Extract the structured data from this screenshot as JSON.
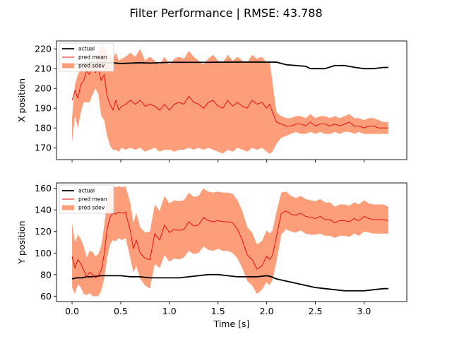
{
  "title": "Filter Performance | RMSE: 43.788",
  "colors": {
    "actual": "#000000",
    "pred_mean": "#ee0000",
    "pred_sdev": "#fc9e7a"
  },
  "chart_data": [
    {
      "type": "line",
      "xlabel": "",
      "ylabel": "X position",
      "xlim": [
        -0.16,
        3.44
      ],
      "ylim": [
        164,
        224
      ],
      "xticks": [
        0.0,
        0.5,
        1.0,
        1.5,
        2.0,
        2.5,
        3.0
      ],
      "xticklabels": [],
      "yticks": [
        170,
        180,
        190,
        200,
        210,
        220
      ],
      "yticklabels": [
        "170",
        "180",
        "190",
        "200",
        "210",
        "220"
      ],
      "legend": {
        "position": "upper-left",
        "entries": [
          "actual",
          "pred mean",
          "pred sdev"
        ]
      },
      "series": [
        {
          "name": "actual",
          "x": [
            0.0,
            0.05,
            0.1,
            0.15,
            0.2,
            0.3,
            0.4,
            0.5,
            0.6,
            0.7,
            0.8,
            1.0,
            1.2,
            1.4,
            1.6,
            1.8,
            2.0,
            2.1,
            2.2,
            2.3,
            2.4,
            2.45,
            2.5,
            2.6,
            2.7,
            2.8,
            2.9,
            3.0,
            3.1,
            3.2,
            3.25
          ],
          "y": [
            212,
            212.3,
            212.6,
            212.8,
            213,
            213,
            213,
            212.6,
            212.8,
            213,
            212.8,
            213.2,
            213.2,
            213.2,
            213.3,
            213.3,
            213.3,
            213.3,
            212,
            211.6,
            211.2,
            210,
            210,
            210,
            211.6,
            211.6,
            210.7,
            210,
            210,
            210.6,
            210.6
          ]
        },
        {
          "name": "pred mean",
          "x": [
            0.0,
            0.03,
            0.06,
            0.09,
            0.12,
            0.15,
            0.18,
            0.21,
            0.24,
            0.27,
            0.3,
            0.33,
            0.36,
            0.39,
            0.42,
            0.45,
            0.48,
            0.51,
            0.55,
            0.6,
            0.65,
            0.7,
            0.75,
            0.8,
            0.85,
            0.9,
            0.95,
            1.0,
            1.05,
            1.1,
            1.15,
            1.2,
            1.25,
            1.3,
            1.35,
            1.4,
            1.45,
            1.5,
            1.55,
            1.6,
            1.65,
            1.7,
            1.75,
            1.8,
            1.85,
            1.9,
            1.95,
            2.0,
            2.03,
            2.06,
            2.1,
            2.15,
            2.2,
            2.25,
            2.3,
            2.35,
            2.4,
            2.45,
            2.5,
            2.55,
            2.6,
            2.65,
            2.7,
            2.75,
            2.8,
            2.85,
            2.9,
            2.95,
            3.0,
            3.05,
            3.1,
            3.15,
            3.2,
            3.25
          ],
          "y": [
            194,
            199,
            195,
            202,
            204,
            209,
            207,
            212,
            208,
            210,
            204,
            207,
            196,
            192,
            189,
            194,
            189,
            191,
            192,
            194,
            192,
            194,
            191,
            192,
            191,
            189,
            192,
            189,
            192,
            193,
            192,
            196,
            193,
            192,
            190,
            193,
            194,
            191,
            190,
            194,
            191,
            193,
            191,
            190,
            194,
            192,
            193,
            190,
            192,
            188,
            183,
            182,
            181,
            181,
            182,
            182,
            181,
            183,
            181,
            182,
            182,
            181,
            182,
            181,
            182,
            183,
            181,
            181,
            180,
            181,
            181,
            180,
            180,
            180
          ]
        },
        {
          "name": "pred sdev",
          "x": [
            0.0,
            0.03,
            0.06,
            0.09,
            0.12,
            0.15,
            0.18,
            0.21,
            0.24,
            0.27,
            0.3,
            0.33,
            0.36,
            0.39,
            0.42,
            0.45,
            0.48,
            0.51,
            0.55,
            0.6,
            0.65,
            0.7,
            0.75,
            0.8,
            0.85,
            0.9,
            0.95,
            1.0,
            1.05,
            1.1,
            1.15,
            1.2,
            1.25,
            1.3,
            1.35,
            1.4,
            1.45,
            1.5,
            1.55,
            1.6,
            1.65,
            1.7,
            1.75,
            1.8,
            1.85,
            1.9,
            1.95,
            2.0,
            2.03,
            2.06,
            2.1,
            2.15,
            2.2,
            2.25,
            2.3,
            2.35,
            2.4,
            2.45,
            2.5,
            2.55,
            2.6,
            2.65,
            2.7,
            2.75,
            2.8,
            2.85,
            2.9,
            2.95,
            3.0,
            3.05,
            3.1,
            3.15,
            3.2,
            3.25
          ],
          "lower": [
            173,
            186,
            180,
            188,
            193,
            193,
            193,
            197,
            200,
            197,
            186,
            184,
            176,
            171,
            169,
            169,
            168,
            170,
            169,
            170,
            169,
            170,
            168,
            169,
            170,
            168,
            169,
            169,
            168,
            169,
            169,
            170,
            169,
            170,
            169,
            170,
            169,
            168,
            167,
            169,
            168,
            170,
            169,
            168,
            170,
            169,
            170,
            168,
            167,
            168,
            172,
            175,
            176,
            177,
            178,
            177,
            177,
            178,
            177,
            178,
            177,
            177,
            178,
            177,
            178,
            178,
            177,
            178,
            177,
            177,
            177,
            177,
            177,
            177
          ],
          "upper": [
            185,
            202,
            207,
            210,
            212,
            214,
            212,
            216,
            213,
            218,
            222,
            221,
            218,
            217,
            215,
            218,
            214,
            215,
            216,
            218,
            216,
            220,
            214,
            216,
            214,
            212,
            216,
            212,
            215,
            216,
            215,
            219,
            216,
            214,
            212,
            215,
            217,
            214,
            213,
            217,
            214,
            216,
            214,
            213,
            217,
            215,
            216,
            213,
            214,
            203,
            188,
            186,
            185,
            185,
            186,
            186,
            185,
            187,
            185,
            186,
            186,
            185,
            186,
            185,
            186,
            187,
            185,
            185,
            184,
            185,
            185,
            184,
            183,
            183
          ]
        }
      ]
    },
    {
      "type": "line",
      "xlabel": "Time [s]",
      "ylabel": "Y position",
      "xlim": [
        -0.16,
        3.44
      ],
      "ylim": [
        55,
        165
      ],
      "xticks": [
        0.0,
        0.5,
        1.0,
        1.5,
        2.0,
        2.5,
        3.0
      ],
      "xticklabels": [
        "0.0",
        "0.5",
        "1.0",
        "1.5",
        "2.0",
        "2.5",
        "3.0"
      ],
      "yticks": [
        60,
        80,
        100,
        120,
        140,
        160
      ],
      "yticklabels": [
        "60",
        "80",
        "100",
        "120",
        "140",
        "160"
      ],
      "legend": {
        "position": "upper-left",
        "entries": [
          "actual",
          "pred mean",
          "pred sdev"
        ]
      },
      "series": [
        {
          "name": "actual",
          "x": [
            0.0,
            0.05,
            0.1,
            0.15,
            0.2,
            0.3,
            0.4,
            0.5,
            0.6,
            0.7,
            0.8,
            0.9,
            1.0,
            1.1,
            1.2,
            1.3,
            1.4,
            1.5,
            1.6,
            1.7,
            1.8,
            1.9,
            2.0,
            2.05,
            2.1,
            2.2,
            2.3,
            2.4,
            2.5,
            2.6,
            2.7,
            2.8,
            2.9,
            3.0,
            3.1,
            3.2,
            3.25
          ],
          "y": [
            76,
            77,
            77,
            78,
            78,
            79,
            79,
            79,
            78,
            78,
            77,
            77,
            77,
            77,
            78,
            79,
            80,
            80,
            79,
            78,
            78,
            78,
            79,
            78,
            76,
            74,
            72,
            70,
            68,
            67,
            66,
            65,
            65,
            65,
            66,
            67,
            67
          ]
        },
        {
          "name": "pred mean",
          "x": [
            0.0,
            0.03,
            0.06,
            0.09,
            0.12,
            0.15,
            0.18,
            0.21,
            0.24,
            0.27,
            0.3,
            0.33,
            0.36,
            0.39,
            0.42,
            0.45,
            0.48,
            0.51,
            0.55,
            0.6,
            0.63,
            0.66,
            0.7,
            0.75,
            0.8,
            0.85,
            0.9,
            0.95,
            1.0,
            1.05,
            1.1,
            1.15,
            1.2,
            1.25,
            1.3,
            1.35,
            1.4,
            1.45,
            1.5,
            1.55,
            1.6,
            1.65,
            1.7,
            1.75,
            1.8,
            1.85,
            1.9,
            1.95,
            2.0,
            2.03,
            2.06,
            2.1,
            2.15,
            2.2,
            2.25,
            2.3,
            2.35,
            2.4,
            2.45,
            2.5,
            2.55,
            2.6,
            2.65,
            2.7,
            2.75,
            2.8,
            2.85,
            2.9,
            2.95,
            3.0,
            3.05,
            3.1,
            3.15,
            3.2,
            3.25
          ],
          "y": [
            97,
            86,
            94,
            90,
            84,
            78,
            82,
            80,
            77,
            79,
            84,
            99,
            122,
            133,
            137,
            136,
            138,
            137,
            138,
            120,
            104,
            112,
            100,
            95,
            94,
            118,
            112,
            126,
            119,
            122,
            121,
            122,
            129,
            125,
            126,
            133,
            130,
            129,
            130,
            129,
            129,
            128,
            122,
            112,
            98,
            94,
            85,
            88,
            97,
            94,
            98,
            115,
            137,
            139,
            136,
            135,
            137,
            134,
            133,
            132,
            134,
            131,
            131,
            128,
            130,
            130,
            129,
            132,
            130,
            134,
            132,
            131,
            131,
            131,
            130
          ]
        },
        {
          "name": "pred sdev",
          "x": [
            0.0,
            0.03,
            0.06,
            0.09,
            0.12,
            0.15,
            0.18,
            0.21,
            0.24,
            0.27,
            0.3,
            0.33,
            0.36,
            0.39,
            0.42,
            0.45,
            0.48,
            0.51,
            0.55,
            0.6,
            0.63,
            0.66,
            0.7,
            0.75,
            0.8,
            0.85,
            0.9,
            0.95,
            1.0,
            1.05,
            1.1,
            1.15,
            1.2,
            1.25,
            1.3,
            1.35,
            1.4,
            1.45,
            1.5,
            1.55,
            1.6,
            1.65,
            1.7,
            1.75,
            1.8,
            1.85,
            1.9,
            1.95,
            2.0,
            2.03,
            2.06,
            2.1,
            2.15,
            2.2,
            2.25,
            2.3,
            2.35,
            2.4,
            2.45,
            2.5,
            2.55,
            2.6,
            2.65,
            2.7,
            2.75,
            2.8,
            2.85,
            2.9,
            2.95,
            3.0,
            3.05,
            3.1,
            3.15,
            3.2,
            3.25
          ],
          "lower": [
            68,
            62,
            71,
            68,
            62,
            61,
            63,
            60,
            60,
            60,
            65,
            76,
            95,
            108,
            112,
            111,
            114,
            112,
            114,
            95,
            82,
            88,
            76,
            70,
            67,
            90,
            86,
            98,
            92,
            95,
            94,
            96,
            102,
            99,
            100,
            106,
            103,
            102,
            104,
            102,
            102,
            100,
            95,
            86,
            74,
            70,
            62,
            66,
            73,
            70,
            75,
            92,
            117,
            122,
            120,
            119,
            121,
            118,
            117,
            117,
            118,
            116,
            116,
            114,
            116,
            116,
            115,
            118,
            116,
            120,
            119,
            118,
            118,
            118,
            118
          ],
          "upper": [
            128,
            110,
            117,
            113,
            106,
            96,
            102,
            101,
            97,
            99,
            107,
            125,
            148,
            158,
            162,
            161,
            162,
            161,
            162,
            146,
            128,
            137,
            124,
            119,
            120,
            145,
            139,
            153,
            146,
            149,
            148,
            149,
            156,
            152,
            153,
            160,
            157,
            156,
            157,
            156,
            156,
            155,
            149,
            139,
            124,
            119,
            108,
            111,
            121,
            118,
            121,
            138,
            156,
            157,
            153,
            151,
            153,
            150,
            149,
            148,
            150,
            147,
            147,
            143,
            145,
            145,
            144,
            147,
            145,
            149,
            146,
            145,
            145,
            145,
            143
          ]
        }
      ]
    }
  ]
}
